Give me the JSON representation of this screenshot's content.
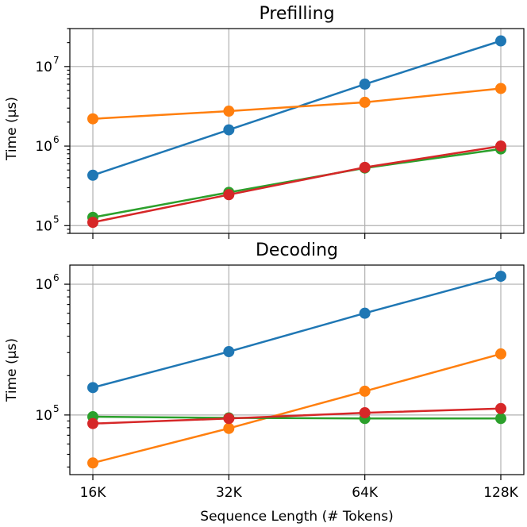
{
  "chart_data": [
    {
      "type": "line",
      "title": "Prefilling",
      "ylabel": "Time (μs)",
      "xlabel": "",
      "x": [
        "16K",
        "32K",
        "64K",
        "128K"
      ],
      "yscale": "log",
      "ylim": [
        80000,
        30000000
      ],
      "yticks": [
        {
          "value": 100000,
          "base": "10",
          "exp": "5"
        },
        {
          "value": 1000000,
          "base": "10",
          "exp": "6"
        },
        {
          "value": 10000000,
          "base": "10",
          "exp": "7"
        }
      ],
      "grid": true,
      "marker": "circle",
      "series": [
        {
          "color": "#1f77b4",
          "values": [
            430000,
            1600000,
            6000000,
            21000000
          ]
        },
        {
          "color": "#ff7f0e",
          "values": [
            2200000,
            2750000,
            3550000,
            5300000
          ]
        },
        {
          "color": "#2ca02c",
          "values": [
            127000,
            262000,
            530000,
            920000
          ]
        },
        {
          "color": "#d62728",
          "values": [
            110000,
            245000,
            540000,
            1000000
          ]
        }
      ]
    },
    {
      "type": "line",
      "title": "Decoding",
      "ylabel": "Time (μs)",
      "xlabel": "Sequence Length (# Tokens)",
      "x": [
        "16K",
        "32K",
        "64K",
        "128K"
      ],
      "yscale": "log",
      "ylim": [
        35000,
        1400000
      ],
      "yticks": [
        {
          "value": 100000,
          "base": "10",
          "exp": "5"
        },
        {
          "value": 1000000,
          "base": "10",
          "exp": "6"
        }
      ],
      "grid": true,
      "marker": "circle",
      "series": [
        {
          "color": "#1f77b4",
          "values": [
            162000,
            305000,
            600000,
            1150000
          ]
        },
        {
          "color": "#ff7f0e",
          "values": [
            43000,
            79000,
            152000,
            293000
          ]
        },
        {
          "color": "#2ca02c",
          "values": [
            97000,
            95000,
            94000,
            94000
          ]
        },
        {
          "color": "#d62728",
          "values": [
            86000,
            94000,
            104000,
            112000
          ]
        }
      ]
    }
  ]
}
